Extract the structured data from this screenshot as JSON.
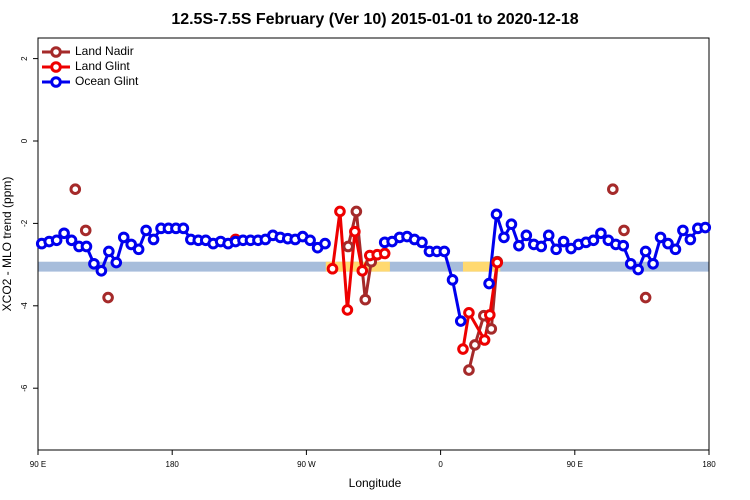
{
  "chart_data": {
    "type": "line",
    "title": "12.5S-7.5S February (Ver 10)   2015-01-01 to 2020-12-18",
    "x_label": "Longitude",
    "y_label": "XCO2 - MLO trend (ppm)",
    "xlim": [
      90,
      540
    ],
    "ylim": [
      -7.5,
      2.5
    ],
    "xticks": [
      {
        "value": 90,
        "label": "90 E"
      },
      180,
      {
        "value": 270,
        "label": "90 W"
      },
      {
        "value": 360,
        "label": "0"
      },
      {
        "value": 450,
        "label": "90 E"
      },
      {
        "value": 540,
        "label": "180"
      }
    ],
    "yticks": [
      2,
      0,
      -2,
      -4,
      -6
    ],
    "legend": "top-left",
    "band": {
      "ylim": [
        -3.17,
        -2.93
      ],
      "color": "#a7bddb"
    },
    "highlights": {
      "color": "#ffd970",
      "ranges": [
        [
          283,
          326
        ],
        [
          375,
          400
        ]
      ]
    },
    "series": [
      {
        "name": "Land Nadir",
        "color": "#a52a2a",
        "x": [
          115,
          118,
          122,
          130,
          137,
          200,
          298,
          303.5,
          309.5,
          313.5,
          345,
          379,
          383,
          389,
          394,
          398,
          440,
          475.5,
          479,
          483,
          490,
          497.5
        ],
        "values": [
          -1.17,
          null,
          -2.17,
          null,
          -3.8,
          null,
          -2.56,
          -1.71,
          -3.85,
          -2.93,
          null,
          -5.56,
          -4.95,
          -4.24,
          -4.56,
          -2.93,
          null,
          -1.17,
          null,
          -2.17,
          null,
          -3.8
        ]
      },
      {
        "name": "Land Glint",
        "color": "#ee0000",
        "x": [
          222.5,
          250,
          287.5,
          292.5,
          297.5,
          302.5,
          307.5,
          312.5,
          317.5,
          322.5,
          350,
          375,
          379,
          389.5,
          393,
          398
        ],
        "values": [
          -2.39,
          null,
          -3.1,
          -1.71,
          -4.1,
          -2.2,
          -3.15,
          -2.78,
          -2.76,
          -2.73,
          null,
          -5.05,
          -4.17,
          -4.83,
          -4.22,
          -2.95
        ]
      },
      {
        "name": "Ocean Glint",
        "color": "#0000ee",
        "x": [
          92.5,
          97.5,
          102.5,
          107.5,
          112.5,
          117.5,
          122.5,
          127.5,
          132.5,
          137.5,
          142.5,
          147.5,
          152.5,
          157.5,
          162.5,
          167.5,
          172.5,
          177.5,
          182.5,
          187.5,
          192.5,
          197.5,
          202.5,
          207.5,
          212.5,
          217.5,
          222.5,
          227.5,
          232.5,
          237.5,
          242.5,
          247.5,
          252.5,
          257.5,
          262.5,
          267.5,
          272.5,
          277.5,
          282.5,
          302.5,
          322.5,
          327.5,
          332.5,
          337.5,
          342.5,
          347.5,
          352.5,
          357.5,
          362.5,
          368,
          373.5,
          382.5,
          392.5,
          397.5,
          402.5,
          407.5,
          412.5,
          417.5,
          422.5,
          427.5,
          432.5,
          437.5,
          442.5,
          447.5,
          452.5,
          457.5,
          462.5,
          467.5,
          472.5,
          477.5,
          482.5,
          487.5,
          492.5,
          497.5,
          502.5,
          507.5,
          512.5,
          517.5,
          522.5,
          527.5,
          532.5,
          537.5
        ],
        "values": [
          -2.49,
          -2.44,
          -2.41,
          -2.24,
          -2.41,
          -2.56,
          -2.56,
          -2.98,
          -3.15,
          -2.68,
          -2.95,
          -2.34,
          -2.51,
          -2.63,
          -2.17,
          -2.39,
          -2.12,
          -2.12,
          -2.12,
          -2.12,
          -2.39,
          -2.41,
          -2.41,
          -2.49,
          -2.44,
          -2.49,
          -2.44,
          -2.41,
          -2.41,
          -2.41,
          -2.39,
          -2.29,
          -2.34,
          -2.37,
          -2.39,
          -2.32,
          -2.41,
          -2.59,
          -2.49,
          null,
          -2.46,
          -2.44,
          -2.34,
          -2.32,
          -2.39,
          -2.46,
          -2.68,
          -2.68,
          -2.68,
          -3.37,
          -4.37,
          null,
          -3.46,
          -1.78,
          -2.34,
          -2.02,
          -2.54,
          -2.29,
          -2.51,
          -2.56,
          -2.29,
          -2.63,
          -2.44,
          -2.61,
          -2.51,
          -2.46,
          -2.41,
          -2.24,
          -2.41,
          -2.51,
          -2.54,
          -2.98,
          -3.12,
          -2.68,
          -2.98,
          -2.34,
          -2.49,
          -2.63,
          -2.17,
          -2.39,
          -2.12,
          -2.1
        ]
      }
    ]
  }
}
